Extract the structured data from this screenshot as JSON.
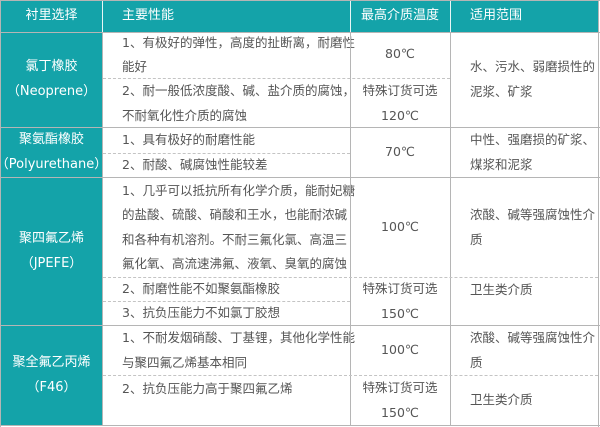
{
  "header": {
    "lining": "衬里选择",
    "performance": "主要性能",
    "max_temp": "最高介质温度",
    "scope": "适用范围"
  },
  "colors": {
    "header_bg": "#14a3a9",
    "header_text": "#ffffff",
    "border": "#b5b5b5"
  },
  "rows": [
    {
      "lining": [
        "氯丁橡胶",
        "（Neoprene）"
      ],
      "performance": [
        [
          "1、有极好的弹性，高度的扯断离，耐磨性",
          "能好"
        ],
        [
          "2、耐一般低浓度酸、碱、盐介质的腐蚀，",
          "不耐氧化性介质的腐蚀"
        ]
      ],
      "temp": [
        [
          "80℃"
        ],
        [
          "特殊订货可选",
          "120℃"
        ]
      ],
      "scope": [
        [
          "水、污水、弱磨损性的",
          "泥浆、矿浆"
        ]
      ]
    },
    {
      "lining": [
        "聚氨酯橡胶",
        "（Polyurethane）"
      ],
      "performance": [
        [
          "1、具有极好的耐磨性能"
        ],
        [
          "2、耐酸、碱腐蚀性能较差"
        ]
      ],
      "temp": [
        [
          "70℃"
        ]
      ],
      "scope": [
        [
          "中性、强磨损的矿浆、",
          "煤浆和泥浆"
        ]
      ]
    },
    {
      "lining": [
        "聚四氟乙烯",
        "（JPEFE）"
      ],
      "performance": [
        [
          "1、几乎可以抵抗所有化学介质，能耐妃糖",
          "的盐酸、硫酸、硝酸和王水，也能耐浓碱",
          "和各种有机溶剂。不耐三氟化氯、高温三",
          "氟化氧、高流速沸氟、液氧、臭氧的腐蚀"
        ],
        [
          "2、耐磨性能不如聚氨酯橡胶"
        ],
        [
          "3、抗负压能力不如氯丁胶想"
        ]
      ],
      "temp": [
        [
          "100℃"
        ],
        [
          "特殊订货可选",
          "150℃"
        ]
      ],
      "scope": [
        [
          "浓酸、碱等强腐蚀性介",
          "质"
        ],
        [
          "卫生类介质"
        ]
      ]
    },
    {
      "lining": [
        "聚全氟乙丙烯",
        "（F46）"
      ],
      "performance": [
        [
          "1、不耐发烟硝酸、丁基锂，其他化学性能",
          "与聚四氟乙烯基本相同"
        ],
        [
          "2、抗负压能力高于聚四氟乙烯"
        ]
      ],
      "temp": [
        [
          "100℃"
        ],
        [
          "特殊订货可选",
          "150℃"
        ]
      ],
      "scope": [
        [
          "浓酸、碱等强腐蚀性介",
          "质"
        ],
        [
          "卫生类介质"
        ]
      ]
    }
  ]
}
